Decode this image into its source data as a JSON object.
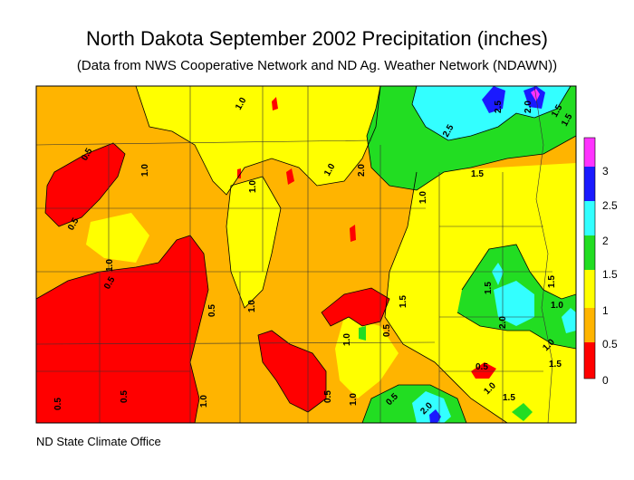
{
  "header": {
    "title": "North Dakota September 2002 Precipitation (inches)",
    "subtitle": "(Data from NWS Cooperative Network and ND Ag. Weather Network (NDAWN))"
  },
  "footer": {
    "credit": "ND State Climate Office"
  },
  "legend": {
    "unit": "inches",
    "items": [
      {
        "label": "3",
        "color": "#ff33ff"
      },
      {
        "label": "2.5",
        "color": "#1a1aff"
      },
      {
        "label": "2",
        "color": "#33ffff"
      },
      {
        "label": "1.5",
        "color": "#22dd22"
      },
      {
        "label": "1",
        "color": "#ffff00"
      },
      {
        "label": "0.5",
        "color": "#ffb400"
      },
      {
        "label": "0",
        "color": "#ff0000"
      }
    ]
  },
  "contour_labels": [
    "0.5",
    "0.5",
    "0.5",
    "1.0",
    "1.0",
    "1.0",
    "1.0",
    "1.0",
    "1.0",
    "1.0",
    "1.5",
    "2.0",
    "2.5",
    "2.5",
    "2.0",
    "1.5",
    "1.5",
    "1.5",
    "1.0",
    "1.5",
    "2.0",
    "1.5",
    "1.0",
    "1.0",
    "1.5",
    "1.0",
    "1.5",
    "2.0",
    "0.5",
    "0.5",
    "0.5",
    "0.5",
    "1.0",
    "0.5",
    "0.5",
    "0.5",
    "1.0"
  ]
}
